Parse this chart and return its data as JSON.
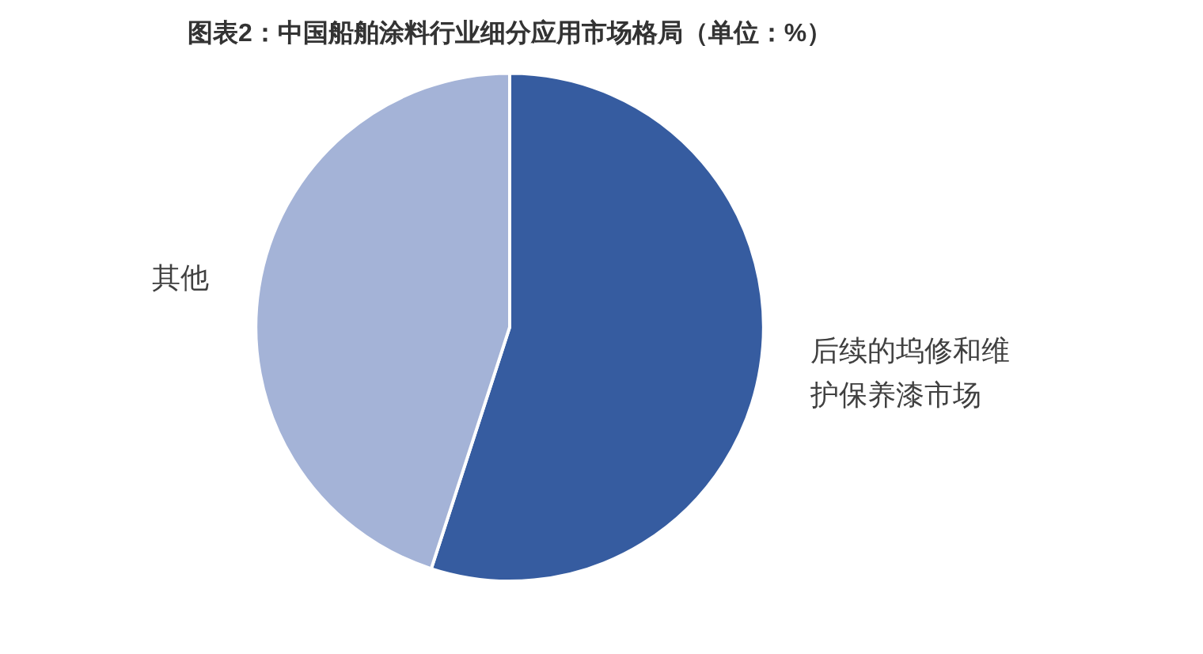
{
  "chart_data": {
    "type": "pie",
    "title": "图表2：中国船舶涂料行业细分应用市场格局（单位：%）",
    "categories": [
      "后续的坞修和维护保养漆市场",
      "其他"
    ],
    "values": [
      55,
      45
    ],
    "colors": [
      "#365ca0",
      "#a4b3d7"
    ]
  }
}
